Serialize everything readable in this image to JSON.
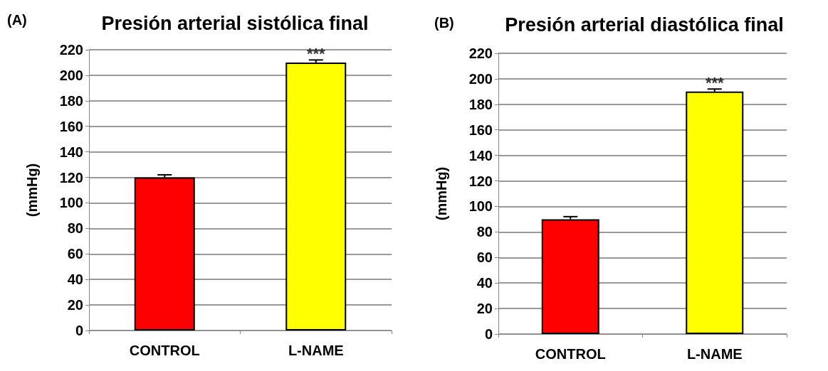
{
  "chart_data": [
    {
      "type": "bar",
      "title": "Presión arterial sistólica final",
      "ylabel": "(mmHg)",
      "categories": [
        "CONTROL",
        "L-NAME"
      ],
      "values": [
        120,
        210
      ],
      "colors": [
        "#ff0000",
        "#ffff00"
      ],
      "errors": [
        [
          120,
          122
        ],
        [
          210,
          212
        ]
      ],
      "ylim": [
        0,
        220
      ],
      "yticks": [
        0,
        20,
        40,
        60,
        80,
        100,
        120,
        140,
        160,
        180,
        200,
        220
      ],
      "grid": "y",
      "annotations": [
        "(A)",
        {
          "text": "***",
          "x": "L-NAME",
          "y": 214
        }
      ]
    },
    {
      "type": "bar",
      "title": "Presión arterial diastólica final",
      "ylabel": "(mmHg)",
      "categories": [
        "CONTROL",
        "L-NAME"
      ],
      "values": [
        90,
        190
      ],
      "colors": [
        "#ff0000",
        "#ffff00"
      ],
      "errors": [
        [
          90,
          92
        ],
        [
          190,
          192
        ]
      ],
      "ylim": [
        0,
        220
      ],
      "yticks": [
        0,
        20,
        40,
        60,
        80,
        100,
        120,
        140,
        160,
        180,
        200,
        220
      ],
      "grid": "y",
      "annotations": [
        "(B)",
        {
          "text": "***",
          "x": "L-NAME",
          "y": 194
        }
      ]
    }
  ]
}
